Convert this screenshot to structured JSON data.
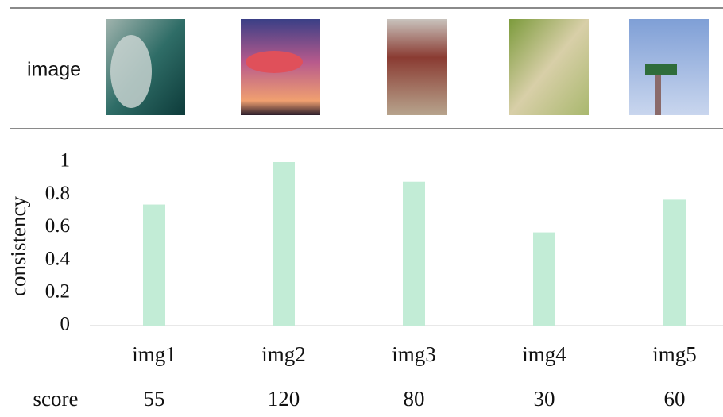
{
  "image_row": {
    "label": "image"
  },
  "chart_data": {
    "type": "bar",
    "y_label": "consistency",
    "categories": [
      "img1",
      "img2",
      "img3",
      "img4",
      "img5"
    ],
    "values": [
      0.74,
      1.0,
      0.88,
      0.57,
      0.77
    ],
    "color": "#c2ecd6",
    "ylim": [
      0,
      1
    ],
    "yticks": [
      0,
      0.2,
      0.4,
      0.6,
      0.8,
      1
    ]
  },
  "score_row": {
    "label": "score",
    "values": [
      55,
      120,
      80,
      30,
      60
    ]
  }
}
